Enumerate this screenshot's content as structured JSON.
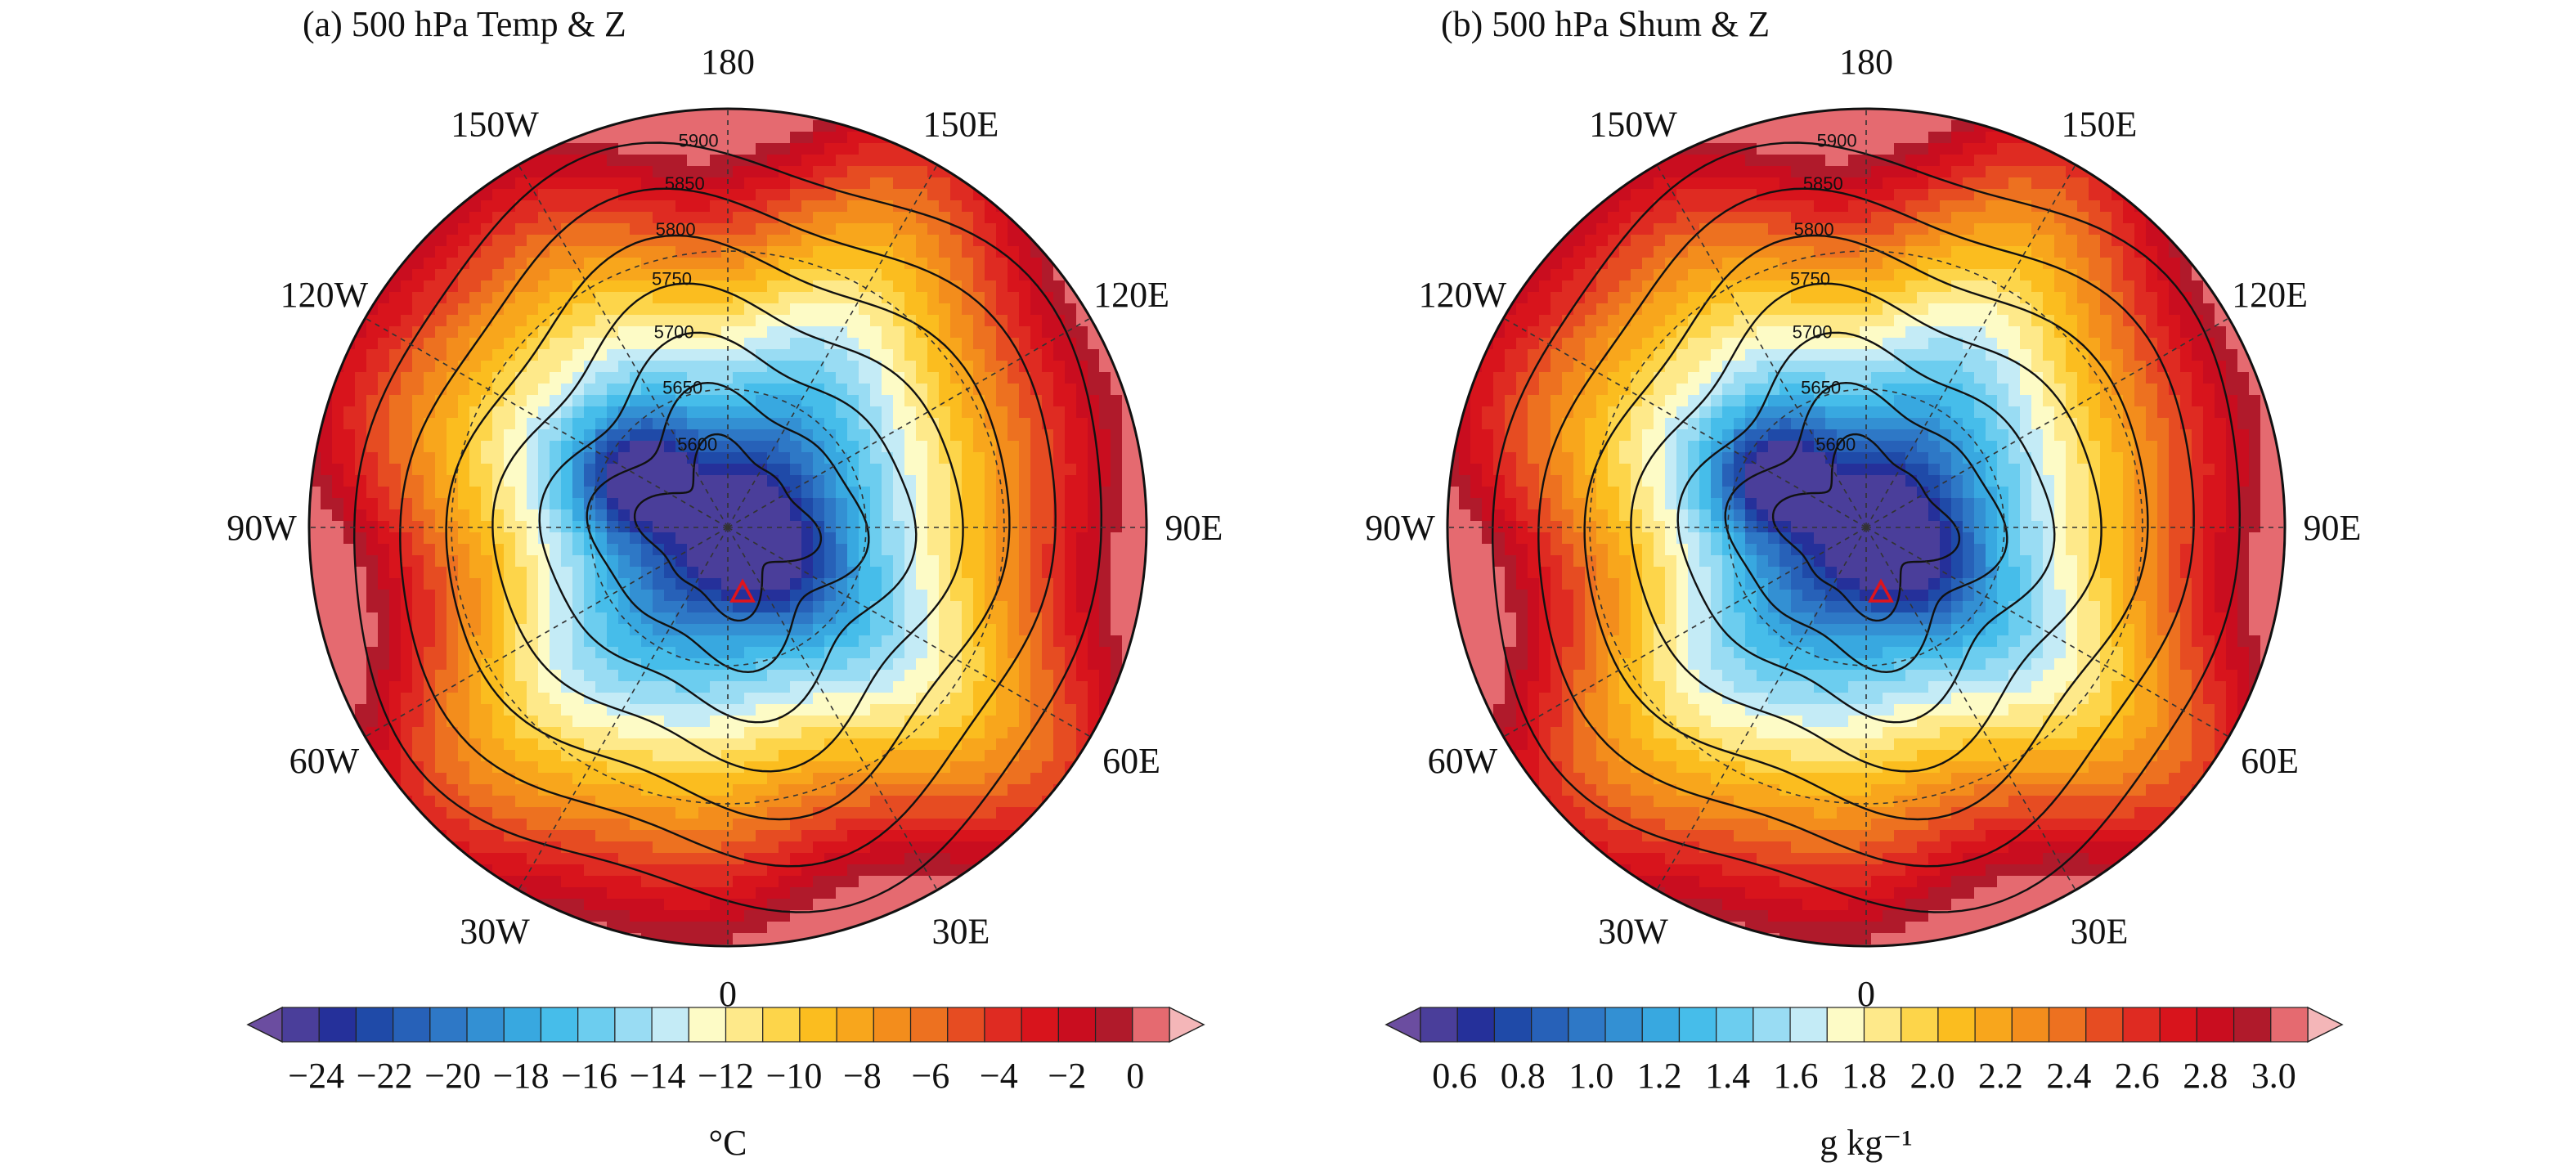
{
  "chart_data": [
    {
      "type": "heatmap",
      "projection": "north polar stereographic",
      "title": "(a) 500 hPa Temp & Z",
      "longitude_labels": [
        "180",
        "150E",
        "120E",
        "90E",
        "60E",
        "30E",
        "0",
        "30W",
        "60W",
        "90W",
        "120W",
        "150W"
      ],
      "colorbar": {
        "ticks": [
          "−24",
          "−22",
          "−20",
          "−18",
          "−16",
          "−14",
          "−12",
          "−10",
          "−8",
          "−6",
          "−4",
          "−2",
          "0"
        ],
        "tick_values": [
          -24,
          -22,
          -20,
          -18,
          -16,
          -14,
          -12,
          -10,
          -8,
          -6,
          -4,
          -2,
          0
        ],
        "range": [
          -25,
          1
        ],
        "step": 1,
        "extend": "both",
        "unit": "°C",
        "colors": [
          "#4a3e9a",
          "#25309a",
          "#1f4aa8",
          "#2761b8",
          "#2e78c6",
          "#3390d3",
          "#38a8e0",
          "#46bdea",
          "#6ccdef",
          "#99dcf3",
          "#c4ebf6",
          "#fdfbc6",
          "#fee98a",
          "#fdd54a",
          "#fbbd1f",
          "#f8a61c",
          "#f38d1c",
          "#ed7120",
          "#e64c22",
          "#df2b22",
          "#d8141c",
          "#c90d1f",
          "#b01a2b",
          "#e56a70"
        ],
        "under_color": "#6b4da0",
        "over_color": "#f4b6b8"
      },
      "contours": {
        "variable": "Z",
        "levels": [
          5600,
          5650,
          5700,
          5750,
          5800,
          5850,
          5900
        ]
      },
      "marker": "red triangle"
    },
    {
      "type": "heatmap",
      "projection": "north polar stereographic",
      "title": "(b) 500 hPa Shum & Z",
      "longitude_labels": [
        "180",
        "150E",
        "120E",
        "90E",
        "60E",
        "30E",
        "0",
        "30W",
        "60W",
        "90W",
        "120W",
        "150W"
      ],
      "colorbar": {
        "ticks": [
          "0.6",
          "0.8",
          "1.0",
          "1.2",
          "1.4",
          "1.6",
          "1.8",
          "2.0",
          "2.2",
          "2.4",
          "2.6",
          "2.8",
          "3.0"
        ],
        "tick_values": [
          0.6,
          0.8,
          1.0,
          1.2,
          1.4,
          1.6,
          1.8,
          2.0,
          2.2,
          2.4,
          2.6,
          2.8,
          3.0
        ],
        "range": [
          0.5,
          3.1
        ],
        "step": 0.1,
        "extend": "both",
        "unit": "g kg⁻¹",
        "colors": [
          "#4a3e9a",
          "#25309a",
          "#1f4aa8",
          "#2761b8",
          "#2e78c6",
          "#3390d3",
          "#38a8e0",
          "#46bdea",
          "#6ccdef",
          "#99dcf3",
          "#c4ebf6",
          "#fdfbc6",
          "#fee98a",
          "#fdd54a",
          "#fbbd1f",
          "#f8a61c",
          "#f38d1c",
          "#ed7120",
          "#e64c22",
          "#df2b22",
          "#d8141c",
          "#c90d1f",
          "#b01a2b",
          "#e56a70"
        ],
        "under_color": "#6b4da0",
        "over_color": "#f4b6b8"
      },
      "contours": {
        "variable": "Z",
        "levels": [
          5600,
          5650,
          5700,
          5750,
          5800,
          5850,
          5900
        ]
      },
      "marker": "red triangle"
    }
  ]
}
